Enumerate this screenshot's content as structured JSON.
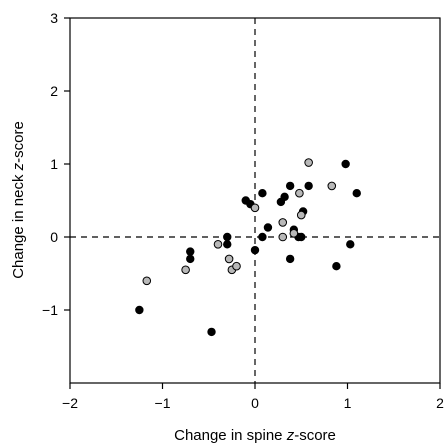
{
  "chart_data": {
    "type": "scatter",
    "title": "",
    "xlabel": {
      "prefix": "Change in spine ",
      "italic": "z",
      "suffix": "-score"
    },
    "ylabel": {
      "prefix": "Change in neck ",
      "italic": "z",
      "suffix": "-score"
    },
    "xlim": [
      -2,
      2
    ],
    "ylim": [
      -2,
      3
    ],
    "xticks": [
      -2,
      -1,
      0,
      1,
      2
    ],
    "xtick_labels": [
      "−2",
      "−1",
      "0",
      "1",
      "2"
    ],
    "yticks": [
      -1,
      0,
      1,
      2,
      3
    ],
    "ytick_labels": [
      "−1",
      "0",
      "1",
      "2",
      "3"
    ],
    "grid": false,
    "reference_lines": {
      "x": 0,
      "y": 0,
      "style": "dashed"
    },
    "series": [
      {
        "marker": "filled-circle",
        "color": "#000000",
        "points": [
          [
            -1.25,
            -1.0
          ],
          [
            -0.47,
            -1.3
          ],
          [
            -0.7,
            -0.2
          ],
          [
            -0.7,
            -0.3
          ],
          [
            -0.3,
            0.0
          ],
          [
            -0.3,
            -0.1
          ],
          [
            -0.1,
            0.5
          ],
          [
            -0.05,
            0.45
          ],
          [
            0.0,
            -0.18
          ],
          [
            0.08,
            0.6
          ],
          [
            0.08,
            0.0
          ],
          [
            0.14,
            0.13
          ],
          [
            0.28,
            0.48
          ],
          [
            0.32,
            0.55
          ],
          [
            0.38,
            0.7
          ],
          [
            0.38,
            -0.3
          ],
          [
            0.42,
            0.1
          ],
          [
            0.47,
            0.0
          ],
          [
            0.5,
            0.0
          ],
          [
            0.52,
            0.35
          ],
          [
            0.58,
            0.7
          ],
          [
            0.88,
            -0.4
          ],
          [
            0.98,
            1.0
          ],
          [
            1.03,
            -0.1
          ],
          [
            1.1,
            0.6
          ]
        ]
      },
      {
        "marker": "open-circle",
        "color": "#b8b8b8",
        "points": [
          [
            -1.17,
            -0.6
          ],
          [
            -0.75,
            -0.45
          ],
          [
            -0.4,
            -0.1
          ],
          [
            -0.28,
            -0.3
          ],
          [
            -0.25,
            -0.45
          ],
          [
            -0.2,
            -0.4
          ],
          [
            0.0,
            0.4
          ],
          [
            0.3,
            0.0
          ],
          [
            0.3,
            0.2
          ],
          [
            0.42,
            0.05
          ],
          [
            0.48,
            0.6
          ],
          [
            0.5,
            0.3
          ],
          [
            0.58,
            1.02
          ],
          [
            0.83,
            0.7
          ]
        ]
      }
    ]
  }
}
